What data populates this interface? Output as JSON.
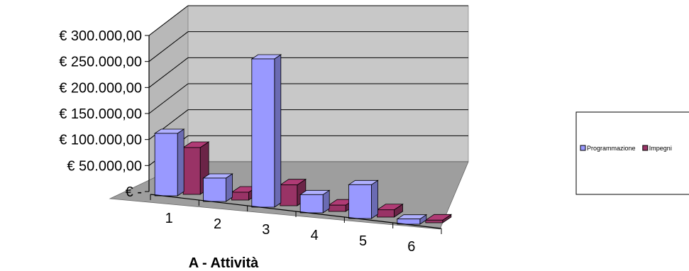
{
  "chart_data": {
    "type": "bar",
    "categories": [
      "1",
      "2",
      "3",
      "4",
      "5",
      "6"
    ],
    "series": [
      {
        "name": "Programmazione",
        "values": [
          120000,
          45000,
          285000,
          35000,
          65000,
          10000
        ],
        "color": "#9999ff"
      },
      {
        "name": "Impegni",
        "values": [
          90000,
          15000,
          40000,
          12000,
          14000,
          5000
        ],
        "color": "#993366"
      }
    ],
    "y_tick_labels": [
      "€ -",
      "€ 50.000,00",
      "€ 100.000,00",
      "€ 150.000,00",
      "€ 200.000,00",
      "€ 250.000,00",
      "€ 300.000,00"
    ],
    "ylim": [
      0,
      300000
    ],
    "xlabel": "A - Attività",
    "ylabel": "",
    "title": "",
    "grid": true,
    "legend_position": "right",
    "style": "3d-clustered-column"
  }
}
